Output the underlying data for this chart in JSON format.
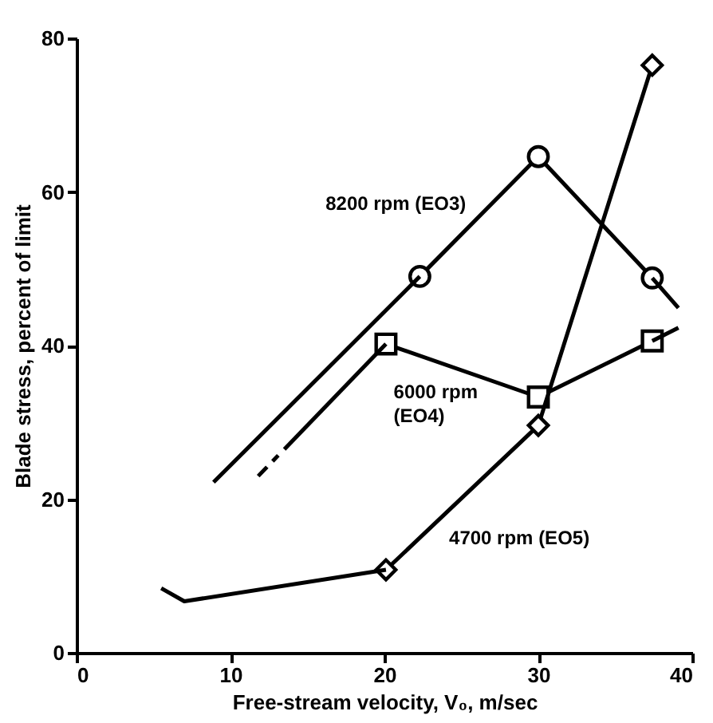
{
  "chart_data": {
    "type": "line",
    "xlabel": "Free-stream velocity, V₀, m/sec",
    "ylabel": "Blade stress, percent of limit",
    "xlim": [
      0,
      40
    ],
    "xticks": [
      0,
      10,
      20,
      30,
      40
    ],
    "ylim": [
      0,
      80
    ],
    "yticks": [
      0,
      20,
      40,
      60,
      80
    ],
    "grid": false,
    "series": [
      {
        "name": "8200 rpm (EO3)",
        "color": "#000000",
        "marker": "circle",
        "line_style": "solid",
        "x": [
          22.3,
          30,
          37.4
        ],
        "values": [
          49,
          64.6,
          48.8
        ]
      },
      {
        "color": "#000000",
        "marker": "none",
        "line_style": "solid",
        "x": [
          8.9,
          22.3
        ],
        "values": [
          22.2,
          49
        ]
      },
      {
        "color": "#000000",
        "marker": "none",
        "line_style": "solid",
        "x": [
          37.4,
          39.1
        ],
        "values": [
          48.8,
          44.9
        ]
      },
      {
        "name": "6000 rpm (EO4)",
        "color": "#000000",
        "marker": "square",
        "line_style": "solid",
        "x": [
          20.1,
          30,
          37.4
        ],
        "values": [
          40.2,
          33.3,
          40.6
        ]
      },
      {
        "color": "#000000",
        "marker": "none",
        "line_style": "solid",
        "x": [
          13.5,
          20.1
        ],
        "values": [
          26.5,
          40.2
        ]
      },
      {
        "color": "#000000",
        "marker": "none",
        "line_style": "solid",
        "x": [
          37.4,
          39.1
        ],
        "values": [
          40.6,
          42.3
        ]
      },
      {
        "color": "#000000",
        "marker": "none",
        "line_style": "dashed",
        "x": [
          11.8,
          13.1
        ],
        "values": [
          23,
          25.7
        ]
      },
      {
        "name": "4700 rpm (EO5)",
        "color": "#000000",
        "marker": "diamond",
        "line_style": "solid",
        "x": [
          20.1,
          30,
          37.4
        ],
        "values": [
          10.8,
          29.6,
          76.5
        ]
      },
      {
        "color": "#000000",
        "marker": "none",
        "line_style": "solid",
        "x": [
          5.5,
          7.0,
          20.1
        ],
        "values": [
          8.4,
          6.7,
          10.8
        ]
      }
    ]
  }
}
